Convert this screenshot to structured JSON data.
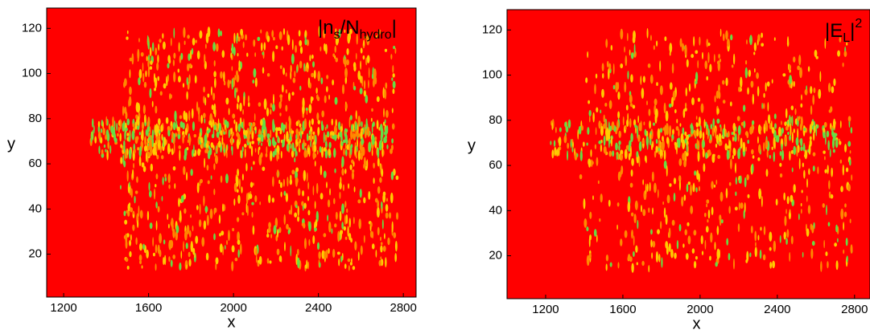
{
  "chart_data": [
    {
      "type": "heatmap",
      "title": [
        "|n",
        "s",
        "/N",
        "hydro",
        "|"
      ],
      "xlabel": "x",
      "ylabel": "y",
      "xlim": [
        1120,
        2860
      ],
      "xticks": [
        1200,
        1600,
        2000,
        2400,
        2800
      ],
      "ylim": [
        1,
        129
      ],
      "yticks": [
        20,
        40,
        60,
        80,
        100,
        120
      ],
      "color": "#ff0000"
    },
    {
      "type": "heatmap",
      "title": [
        "|E",
        "L",
        "|",
        "2"
      ],
      "xlabel": "x",
      "ylabel": "y",
      "xlim": [
        1000,
        2880
      ],
      "xticks": [
        1200,
        1600,
        2000,
        2400,
        2800
      ],
      "ylim": [
        1,
        129
      ],
      "yticks": [
        20,
        40,
        60,
        80,
        100,
        120
      ],
      "color": "#ff0000"
    }
  ]
}
